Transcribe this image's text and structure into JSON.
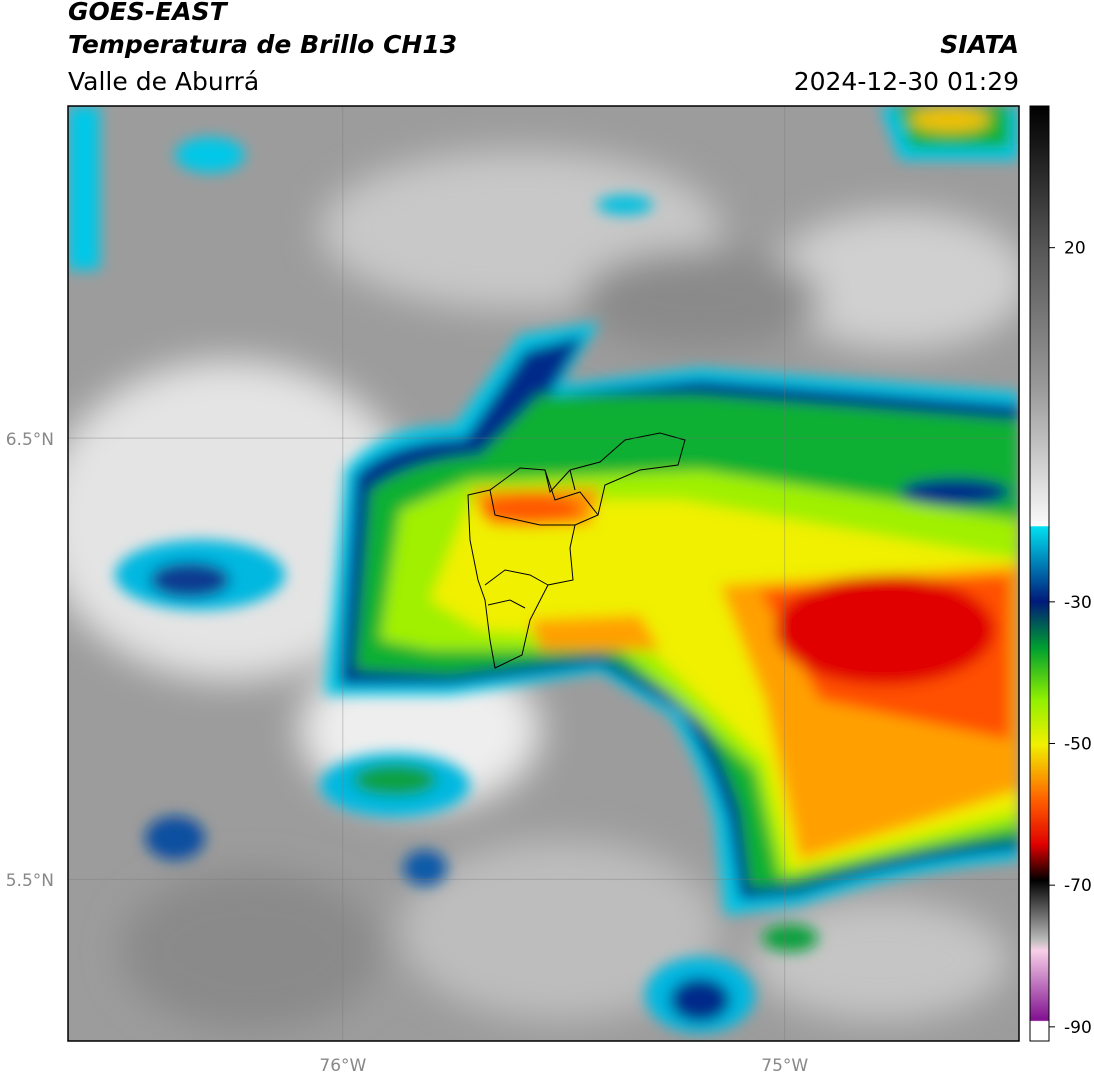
{
  "header": {
    "title": "GOES-EAST",
    "subtitle": "Temperatura de Brillo CH13",
    "region": "Valle de Aburrá",
    "source": "SIATA",
    "datetime": "2024-12-30 01:29"
  },
  "map": {
    "xlim": [
      -76.622,
      -74.47
    ],
    "ylim": [
      5.133,
      7.253
    ],
    "xticks": [
      {
        "value": -76,
        "label": "76°W"
      },
      {
        "value": -75,
        "label": "75°W"
      }
    ],
    "yticks": [
      {
        "value": 6.5,
        "label": "6.5°N"
      },
      {
        "value": 5.5,
        "label": "5.5°N"
      }
    ]
  },
  "colorbar": {
    "clim": [
      -92,
      40
    ],
    "ticks": [
      20,
      -30,
      -50,
      -70,
      -90
    ]
  }
}
